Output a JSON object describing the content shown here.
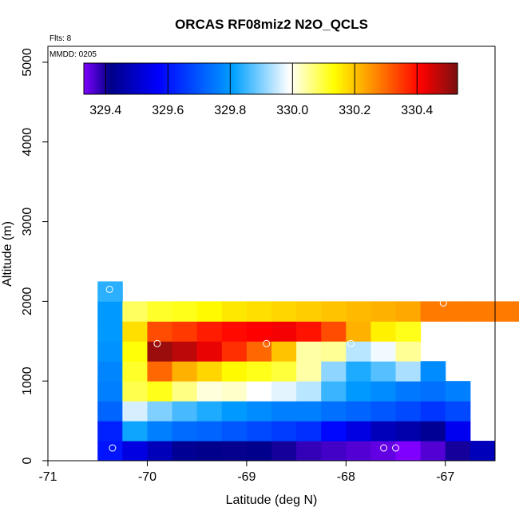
{
  "chart_data": {
    "type": "heatmap",
    "title": "ORCAS RF08miz2 N2O_QCLS",
    "annotations": {
      "flights": "Flts: 8",
      "date": "MMDD: 0205"
    },
    "xlabel": "Latitude (deg N)",
    "ylabel": "Altitude (m)",
    "xlim": [
      -71,
      -66.5
    ],
    "ylim": [
      0,
      5200
    ],
    "x_ticks": [
      -71,
      -70,
      -69,
      -68,
      -67
    ],
    "y_ticks": [
      0,
      1000,
      2000,
      3000,
      4000,
      5000
    ],
    "x_tick_labels": [
      "-71",
      "-70",
      "-69",
      "-68",
      "-67"
    ],
    "y_tick_labels": [
      "0",
      "1000",
      "2000",
      "3000",
      "4000",
      "5000"
    ],
    "cell_width_deg": 0.25,
    "cell_height_m": 250,
    "colorbar": {
      "range": [
        329.33,
        330.53
      ],
      "ticks": [
        329.4,
        329.6,
        329.8,
        330.0,
        330.2,
        330.4
      ],
      "tick_labels": [
        "329.4",
        "329.6",
        "329.8",
        "330.0",
        "330.2",
        "330.4"
      ],
      "colors": [
        "#8000ff",
        "#000088",
        "#0000ff",
        "#00a0ff",
        "#ffffff",
        "#ffff00",
        "#ff8800",
        "#ff0000",
        "#7a1010"
      ],
      "stops": [
        0,
        0.07,
        0.2,
        0.4,
        0.55,
        0.67,
        0.78,
        0.9,
        1.0
      ]
    },
    "rows": [
      {
        "alt": 0,
        "lat0": -70.5,
        "values": [
          329.6,
          329.53,
          329.48,
          329.43,
          329.42,
          329.41,
          329.42,
          329.4,
          329.38,
          329.37,
          329.36,
          329.35,
          329.33,
          329.36,
          329.4,
          329.48
        ]
      },
      {
        "alt": 250,
        "lat0": -70.5,
        "values": [
          329.62,
          329.82,
          329.76,
          329.73,
          329.72,
          329.7,
          329.68,
          329.66,
          329.64,
          329.58,
          329.53,
          329.48,
          329.46,
          329.43,
          329.55
        ]
      },
      {
        "alt": 500,
        "lat0": -70.5,
        "values": [
          329.72,
          329.96,
          329.9,
          329.86,
          329.83,
          329.8,
          329.78,
          329.76,
          329.76,
          329.74,
          329.72,
          329.7,
          329.68,
          329.65,
          329.68
        ]
      },
      {
        "alt": 750,
        "lat0": -70.5,
        "values": [
          329.76,
          330.09,
          330.12,
          330.06,
          330.01,
          330.02,
          329.99,
          329.97,
          329.94,
          329.85,
          329.8,
          329.78,
          329.75,
          329.74,
          329.76
        ]
      },
      {
        "alt": 1000,
        "lat0": -70.5,
        "values": [
          329.77,
          330.11,
          330.3,
          330.22,
          330.18,
          330.14,
          330.12,
          330.1,
          330.04,
          329.91,
          329.83,
          329.87,
          329.93,
          329.78
        ]
      },
      {
        "alt": 1250,
        "lat0": -70.5,
        "values": [
          329.79,
          330.13,
          330.5,
          330.47,
          330.43,
          330.36,
          330.3,
          330.2,
          330.04,
          330.05,
          329.94,
          329.98,
          330.05
        ]
      },
      {
        "alt": 1500,
        "lat0": -70.5,
        "values": [
          329.8,
          330.17,
          330.33,
          330.35,
          330.38,
          330.4,
          330.41,
          330.42,
          330.39,
          330.33,
          330.22,
          330.15,
          330.12
        ]
      },
      {
        "alt": 1750,
        "lat0": -70.5,
        "values": [
          329.8,
          330.08,
          330.11,
          330.12,
          330.14,
          330.16,
          330.17,
          330.18,
          330.19,
          330.2,
          330.21,
          330.22,
          330.23,
          330.28,
          330.28,
          330.28,
          330.28
        ]
      },
      {
        "alt": 2000,
        "lat0": -70.5,
        "values": [
          329.84
        ]
      }
    ],
    "points": [
      {
        "lat": -70.38,
        "alt": 2150
      },
      {
        "lat": -67.02,
        "alt": 1980
      },
      {
        "lat": -69.9,
        "alt": 1470
      },
      {
        "lat": -68.8,
        "alt": 1470
      },
      {
        "lat": -67.95,
        "alt": 1470
      },
      {
        "lat": -70.35,
        "alt": 160
      },
      {
        "lat": -67.62,
        "alt": 160
      },
      {
        "lat": -67.5,
        "alt": 160
      }
    ]
  }
}
